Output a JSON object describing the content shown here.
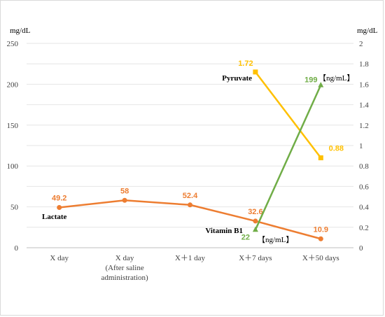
{
  "chart_data": {
    "type": "line",
    "categories": [
      [
        "X day"
      ],
      [
        "X day",
        "(After saline",
        "administration)"
      ],
      [
        "X＋1 day"
      ],
      [
        "X＋7 days"
      ],
      [
        "X＋50 days"
      ]
    ],
    "left_axis": {
      "unit": "mg/dL",
      "min": 0,
      "max": 250,
      "ticks": [
        "0",
        "50",
        "100",
        "150",
        "200",
        "250"
      ]
    },
    "right_axis": {
      "unit": "mg/dL",
      "min": 0,
      "max": 2,
      "ticks": [
        "0",
        "0.2",
        "0.4",
        "0.6",
        "0.8",
        "1",
        "1.2",
        "1.4",
        "1.6",
        "1.8",
        "2"
      ]
    },
    "grid": "horizontal",
    "series": [
      {
        "name": "Lactate",
        "axis": "left",
        "color": "#ED7D31",
        "marker": "circle",
        "x": [
          0,
          1,
          2,
          3,
          4
        ],
        "values": [
          49.2,
          58,
          52.4,
          32.6,
          10.9
        ],
        "labels": [
          "49.2",
          "58",
          "52.4",
          "32.6",
          "10.9"
        ]
      },
      {
        "name": "Pyruvate",
        "axis": "right",
        "color": "#FFC000",
        "marker": "square",
        "x": [
          3,
          4
        ],
        "values": [
          1.72,
          0.88
        ],
        "labels": [
          "1.72",
          "0.88"
        ]
      },
      {
        "name": "Vitamin B1",
        "axis": "right",
        "color": "#70AD47",
        "marker": "triangle",
        "x": [
          3,
          4
        ],
        "values": [
          0.176,
          1.592
        ],
        "labels": [
          "22",
          "199"
        ],
        "unit_note": "【ng/mL】"
      }
    ]
  }
}
